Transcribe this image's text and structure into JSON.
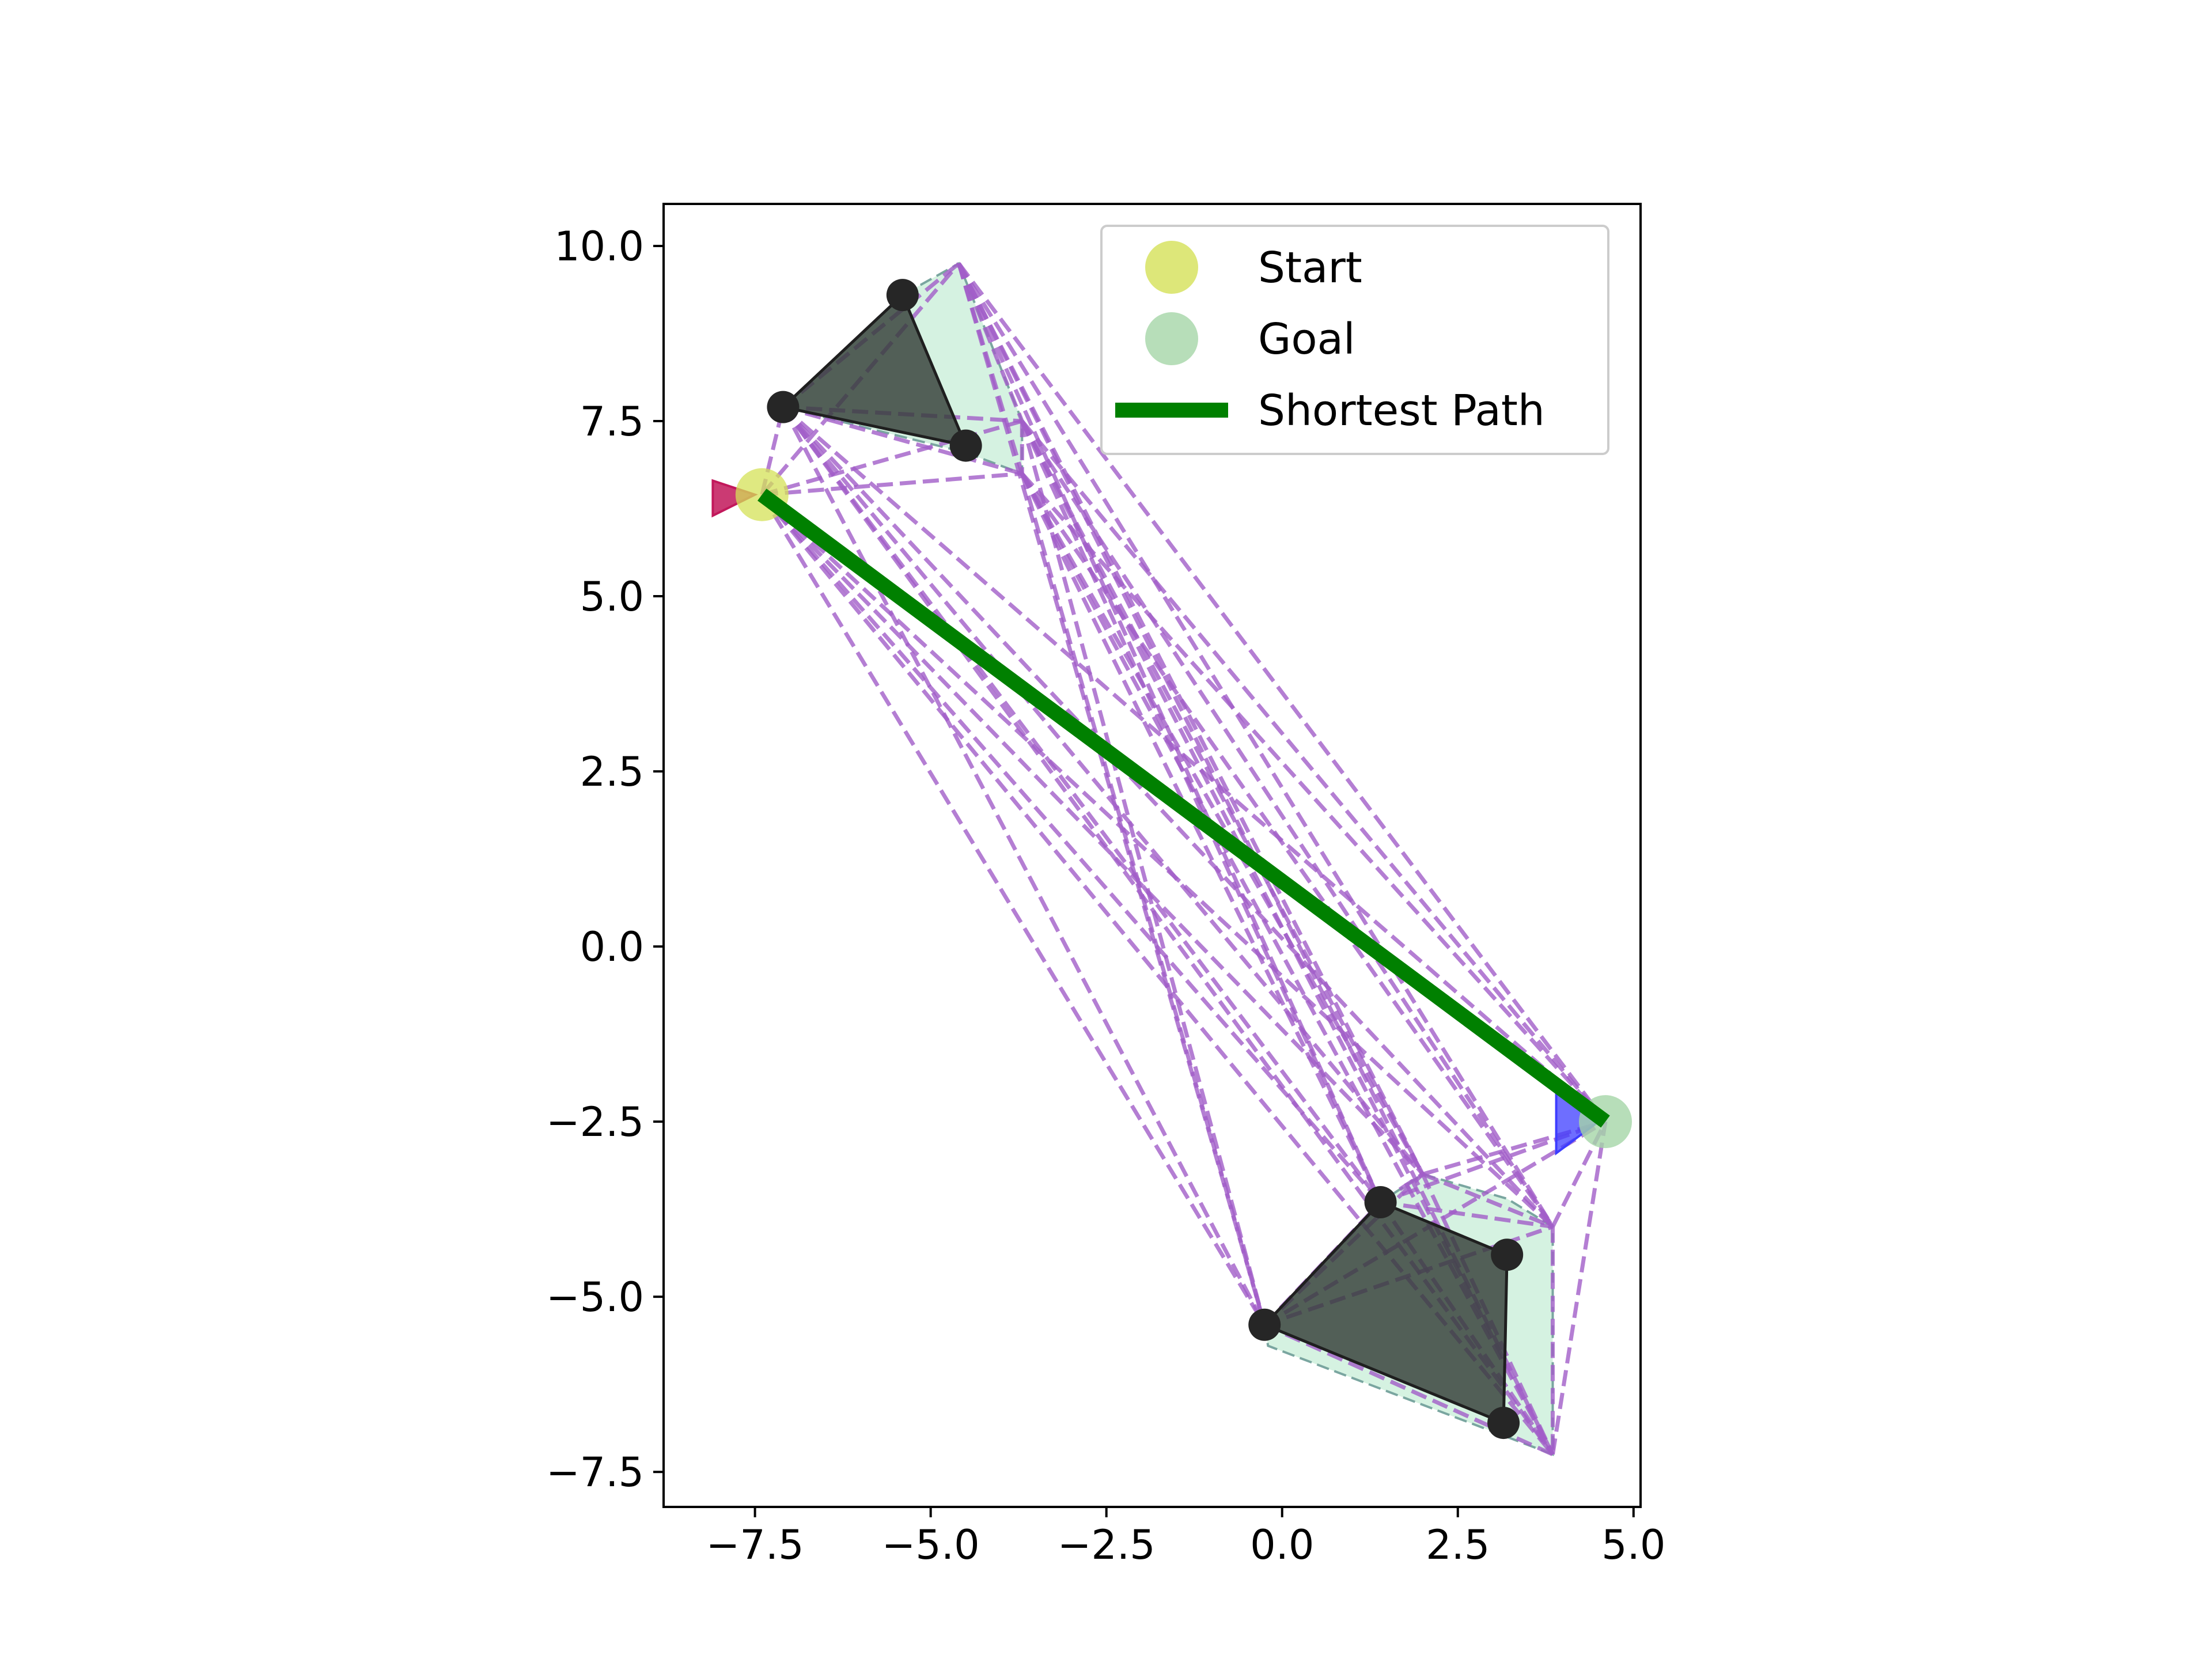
{
  "chart_data": {
    "type": "scatter",
    "title": "",
    "xlabel": "",
    "ylabel": "",
    "xlim": [
      -8.8,
      5.1
    ],
    "ylim": [
      -8.0,
      10.6
    ],
    "xticks": [
      -7.5,
      -5.0,
      -2.5,
      0.0,
      2.5,
      5.0
    ],
    "yticks": [
      -7.5,
      -5.0,
      -2.5,
      0.0,
      2.5,
      5.0,
      7.5,
      10.0
    ],
    "xtick_labels": [
      "−7.5",
      "−5.0",
      "−2.5",
      "0.0",
      "2.5",
      "5.0"
    ],
    "ytick_labels": [
      "−7.5",
      "−5.0",
      "−2.5",
      "0.0",
      "2.5",
      "5.0",
      "7.5",
      "10.0"
    ],
    "grid": false,
    "legend": {
      "position": "top-right",
      "entries": [
        {
          "label": "Start",
          "kind": "marker",
          "color": "#d4e157"
        },
        {
          "label": "Goal",
          "kind": "marker",
          "color": "#a5d6a7"
        },
        {
          "label": "Shortest Path",
          "kind": "line",
          "color": "#008000"
        }
      ]
    },
    "start": {
      "x": -7.4,
      "y": 6.45
    },
    "goal": {
      "x": 4.6,
      "y": -2.5
    },
    "shortest_path": [
      [
        -7.4,
        6.45
      ],
      [
        4.6,
        -2.5
      ]
    ],
    "start_marker": {
      "points": [
        [
          -8.1,
          6.65
        ],
        [
          -8.1,
          6.15
        ],
        [
          -7.5,
          6.45
        ]
      ],
      "color": "#c2185b"
    },
    "goal_marker": {
      "points": [
        [
          3.9,
          -2.05
        ],
        [
          3.9,
          -2.95
        ],
        [
          4.5,
          -2.5
        ]
      ],
      "color": "#3d3dff"
    },
    "obstacles": [
      {
        "name": "obstacle-top",
        "vertices": [
          [
            -7.1,
            7.7
          ],
          [
            -5.4,
            9.3
          ],
          [
            -4.5,
            7.15
          ]
        ]
      },
      {
        "name": "obstacle-bottom",
        "vertices": [
          [
            -0.25,
            -5.4
          ],
          [
            1.4,
            -3.65
          ],
          [
            3.2,
            -4.4
          ],
          [
            3.15,
            -6.8
          ]
        ]
      }
    ],
    "inflated_regions": [
      {
        "name": "inflated-region-top",
        "vertices": [
          [
            -7.1,
            7.7
          ],
          [
            -5.4,
            9.3
          ],
          [
            -4.6,
            9.75
          ],
          [
            -3.7,
            7.5
          ],
          [
            -3.7,
            6.75
          ],
          [
            -4.5,
            7.05
          ]
        ]
      },
      {
        "name": "inflated-region-bottom",
        "vertices": [
          [
            -0.25,
            -5.4
          ],
          [
            -0.2,
            -5.7
          ],
          [
            3.85,
            -7.25
          ],
          [
            3.85,
            -4.0
          ],
          [
            3.2,
            -3.6
          ],
          [
            2.0,
            -3.25
          ],
          [
            1.4,
            -3.65
          ]
        ]
      }
    ],
    "graph_nodes": [
      [
        -7.4,
        6.45
      ],
      [
        -7.1,
        7.7
      ],
      [
        -4.6,
        9.75
      ],
      [
        -3.7,
        7.5
      ],
      [
        -3.7,
        6.75
      ],
      [
        -0.25,
        -5.4
      ],
      [
        1.4,
        -3.65
      ],
      [
        2.0,
        -3.25
      ],
      [
        3.85,
        -4.0
      ],
      [
        3.85,
        -7.25
      ],
      [
        4.6,
        -2.5
      ]
    ],
    "colors": {
      "obstacle_fill": "#353e38",
      "obstacle_edge": "#1f1f1f",
      "vertex": "#262626",
      "inflated_fill": "#d5f2e1",
      "graph_edge": "#a25ec9"
    }
  }
}
